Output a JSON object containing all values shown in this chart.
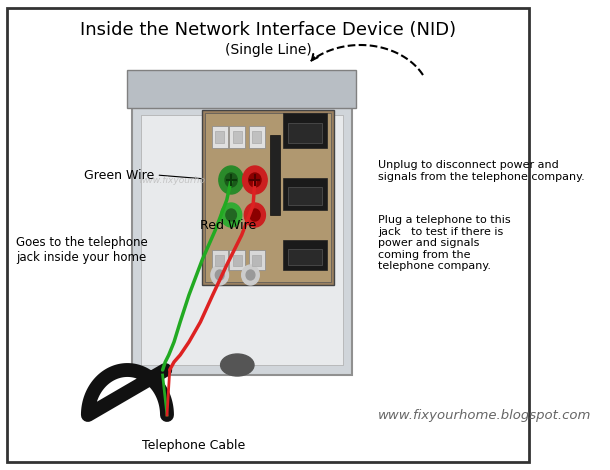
{
  "title": "Inside the Network Interface Device (NID)",
  "subtitle": "(Single Line)",
  "bg_color": "#ffffff",
  "border_color": "#000000",
  "watermark": "www.fixyourhome.blogspot.com",
  "website": "www.fixyourhome.blogspot.com",
  "annotations": {
    "green_wire": "Green Wire",
    "red_wire": "Red Wire",
    "telephone_cable": "Telephone Cable",
    "goes_to": "Goes to the telephone\njack inside your home",
    "unplug": "Unplug to disconnect power and\nsignals from the telephone company.",
    "plug": "Plug a telephone to this\njack   to test if there is\npower and signals\ncoming from the\ntelephone company."
  }
}
